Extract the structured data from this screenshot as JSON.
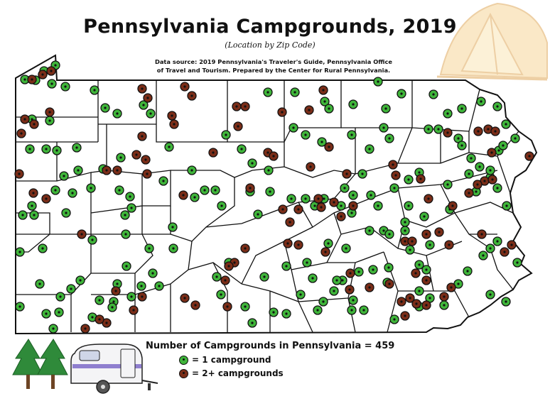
{
  "title": "Pennsylvania Campgrounds, 2019",
  "subtitle": "(Location by Zip Code)",
  "source_line1": "Data source: 2019 Pennsylvania's Traveler's Guide, Pennsylvania Office",
  "source_line2": "of Travel and Tourism. Prepared by the Center for Rural Pennsylvania.",
  "legend": {
    "total_label": "Number of Campgrounds in Pennsylvania = 459",
    "one_label": "= 1 campground",
    "two_label": "= 2+ campgrounds"
  },
  "colors": {
    "one_campground": "#3fb53a",
    "two_plus_campgrounds": "#7a2d18",
    "outline": "#111111"
  },
  "icons": [
    "tent-icon",
    "pine-tree-icon",
    "camper-trailer-icon"
  ]
}
